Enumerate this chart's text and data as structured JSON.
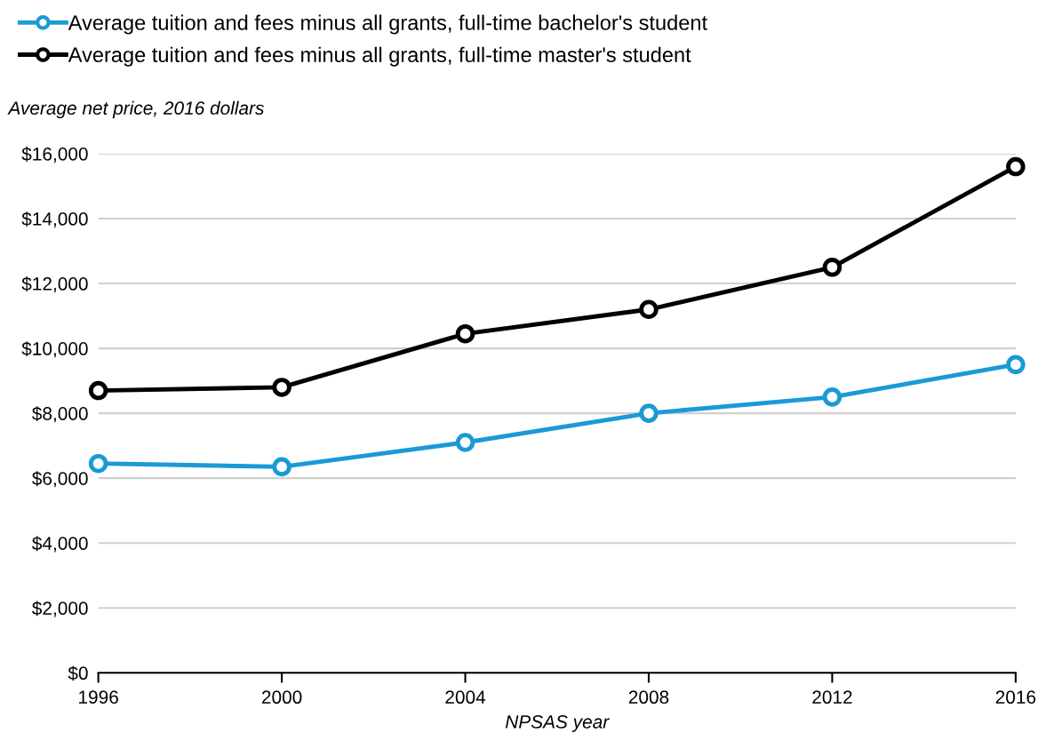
{
  "chart_data": {
    "type": "line",
    "xlabel": "NPSAS year",
    "ylabel": "Average net price, 2016 dollars",
    "x": [
      1996,
      2000,
      2004,
      2008,
      2012,
      2016
    ],
    "series": [
      {
        "name": "Average tuition and fees minus all grants, full-time bachelor's student",
        "color": "#1a9ad6",
        "values": [
          6450,
          6350,
          7100,
          8000,
          8500,
          9500
        ]
      },
      {
        "name": "Average tuition and fees minus all grants, full-time master's student",
        "color": "#000000",
        "values": [
          8700,
          8800,
          10450,
          11200,
          12500,
          15600
        ]
      }
    ],
    "xlim": [
      1996,
      2016
    ],
    "xticks": [
      1996,
      2000,
      2004,
      2008,
      2012,
      2016
    ],
    "ylim": [
      0,
      16000
    ],
    "yticks": [
      {
        "value": 0,
        "label": "$0"
      },
      {
        "value": 2000,
        "label": "$2,000"
      },
      {
        "value": 4000,
        "label": "$4,000"
      },
      {
        "value": 6000,
        "label": "$6,000"
      },
      {
        "value": 8000,
        "label": "$8,000"
      },
      {
        "value": 10000,
        "label": "$10,000"
      },
      {
        "value": 12000,
        "label": "$12,000"
      },
      {
        "value": 14000,
        "label": "$14,000"
      },
      {
        "value": 16000,
        "label": "$16,000"
      }
    ],
    "grid": "y",
    "legend": "top left",
    "marker": "circle",
    "line_style": "solid"
  }
}
